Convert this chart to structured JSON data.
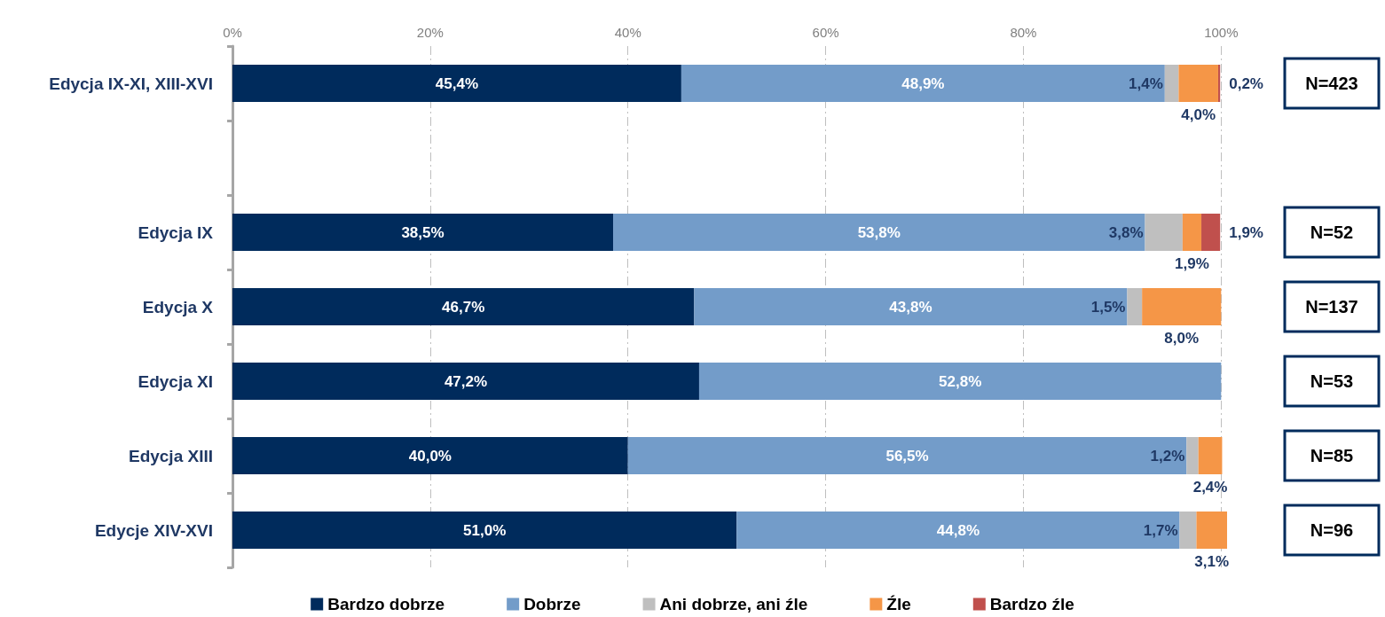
{
  "chart_data": {
    "type": "bar",
    "orientation": "horizontal",
    "stacked": true,
    "categories": [
      "Edycja IX-XI, XIII-XVI",
      null,
      "Edycja IX",
      "Edycja X",
      "Edycja XI",
      "Edycja XIII",
      "Edycje XIV-XVI"
    ],
    "xlim": [
      0,
      100.6
    ],
    "xticks": [
      {
        "value": 0,
        "label": "0%"
      },
      {
        "value": 20,
        "label": "20%"
      },
      {
        "value": 40,
        "label": "40%"
      },
      {
        "value": 60,
        "label": "60%"
      },
      {
        "value": 80,
        "label": "80%"
      },
      {
        "value": 100,
        "label": "100%"
      }
    ],
    "grid": "x",
    "legend": "bottom",
    "series": [
      {
        "name": "Bardzo dobrze",
        "color": "#002b5c",
        "values": [
          45.4,
          null,
          38.5,
          46.7,
          47.2,
          40.0,
          51.0
        ],
        "value_labels": [
          "45,4%",
          null,
          "38,5%",
          "46,7%",
          "47,2%",
          "40,0%",
          "51,0%"
        ]
      },
      {
        "name": "Dobrze",
        "color": "#739cc9",
        "values": [
          48.9,
          null,
          53.8,
          43.8,
          52.8,
          56.5,
          44.8
        ],
        "value_labels": [
          "48,9%",
          null,
          "53,8%",
          "43,8%",
          "52,8%",
          "56,5%",
          "44,8%"
        ]
      },
      {
        "name": "Ani dobrze, ani źle",
        "color": "#bfbfbf",
        "values": [
          1.4,
          null,
          3.8,
          1.5,
          null,
          1.2,
          1.7
        ],
        "value_labels": [
          "1,4%",
          null,
          "3,8%",
          "1,5%",
          null,
          "1,2%",
          "1,7%"
        ]
      },
      {
        "name": "Źle",
        "color": "#f59647",
        "values": [
          4.0,
          null,
          1.9,
          8.0,
          null,
          2.4,
          3.1
        ],
        "value_labels": [
          "4,0%",
          null,
          "1,9%",
          "8,0%",
          null,
          "2,4%",
          "3,1%"
        ]
      },
      {
        "name": "Bardzo źle",
        "color": "#c0504d",
        "values": [
          0.2,
          null,
          1.9,
          null,
          null,
          null,
          null
        ],
        "value_labels": [
          "0,2%",
          null,
          "1,9%",
          null,
          null,
          null,
          null
        ]
      }
    ],
    "annotations": [
      "N=423",
      "N=52",
      "N=137",
      "N=53",
      "N=85",
      "N=96"
    ]
  }
}
